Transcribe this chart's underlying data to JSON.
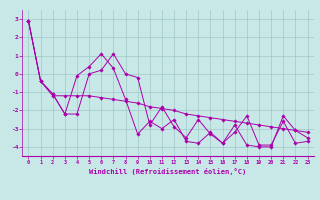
{
  "xlabel": "Windchill (Refroidissement éolien,°C)",
  "ylabel": "",
  "xlim": [
    -0.5,
    23.5
  ],
  "ylim": [
    -4.5,
    3.5
  ],
  "yticks": [
    3,
    2,
    1,
    0,
    -1,
    -2,
    -3,
    -4
  ],
  "xticks": [
    0,
    1,
    2,
    3,
    4,
    5,
    6,
    7,
    8,
    9,
    10,
    11,
    12,
    13,
    14,
    15,
    16,
    17,
    18,
    19,
    20,
    21,
    22,
    23
  ],
  "background_color": "#c8e8e8",
  "line_color": "#aa00aa",
  "grid_color": "#a0c8c8",
  "series": [
    [
      2.9,
      -0.4,
      -1.1,
      -2.2,
      -2.2,
      0.0,
      0.2,
      1.1,
      0.0,
      -0.2,
      -2.8,
      -1.8,
      -2.9,
      -3.5,
      -2.5,
      -3.3,
      -3.8,
      -2.8,
      -3.9,
      -4.0,
      -4.0,
      -2.3,
      -3.1,
      -3.5
    ],
    [
      2.9,
      -0.4,
      -1.1,
      -2.2,
      -0.1,
      0.4,
      1.1,
      0.3,
      -1.4,
      -3.3,
      -2.6,
      -3.0,
      -2.5,
      -3.7,
      -3.8,
      -3.2,
      -3.8,
      -3.2,
      -2.3,
      -3.9,
      -3.9,
      -2.6,
      -3.8,
      -3.7
    ],
    [
      2.9,
      -0.4,
      -1.2,
      -1.2,
      -1.2,
      -1.2,
      -1.3,
      -1.4,
      -1.5,
      -1.6,
      -1.8,
      -1.9,
      -2.0,
      -2.2,
      -2.3,
      -2.4,
      -2.5,
      -2.6,
      -2.7,
      -2.8,
      -2.9,
      -3.0,
      -3.1,
      -3.2
    ]
  ],
  "figsize": [
    3.2,
    2.0
  ],
  "dpi": 100
}
